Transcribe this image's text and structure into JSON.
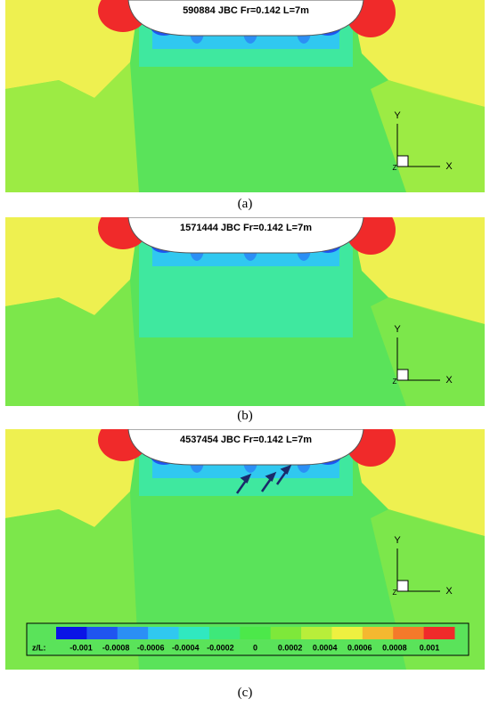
{
  "panels": [
    {
      "title": "590884 JBC Fr=0.142 L=7m",
      "caption": "(a)"
    },
    {
      "title": "1571444 JBC Fr=0.142 L=7m",
      "caption": "(b)"
    },
    {
      "title": "4537454 JBC Fr=0.142 L=7m",
      "caption": "(c)"
    }
  ],
  "axes": {
    "x": "X",
    "y": "Y",
    "z": "Z"
  },
  "colorbar": {
    "label": "z/L:",
    "colors": [
      "#0a14e6",
      "#1f55f0",
      "#2b8ff5",
      "#30c8f0",
      "#30e8c0",
      "#3ee87a",
      "#4ce84a",
      "#7ee83a",
      "#b8ee3a",
      "#eef040",
      "#f5b830",
      "#f57a2a",
      "#f02a2a"
    ],
    "ticks": [
      -0.001,
      -0.0008,
      -0.0006,
      -0.0004,
      -0.0002,
      0,
      0.0002,
      0.0004,
      0.0006,
      0.0008,
      0.001
    ]
  }
}
